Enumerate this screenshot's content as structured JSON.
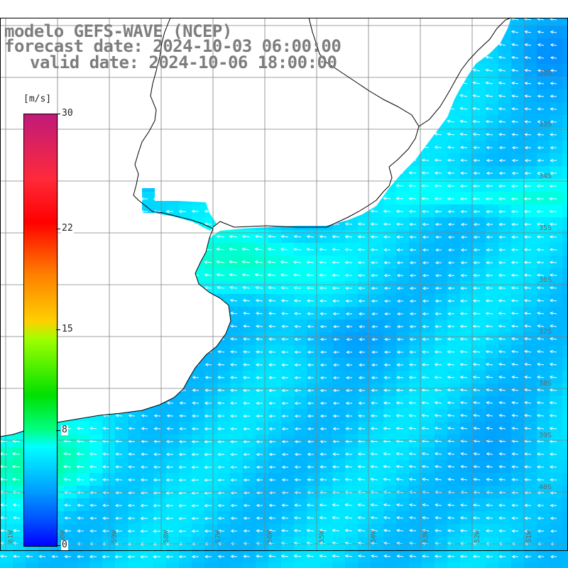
{
  "title": {
    "line1": "modelo GEFS-WAVE (NCEP)",
    "line2": "forecast date: 2024-10-03 06:00:00",
    "line3": "valid date: 2024-10-06 18:00:00"
  },
  "colorbar": {
    "unit": "[m/s]",
    "labels": [
      "30",
      "22",
      "15",
      "8",
      "0"
    ],
    "ticks": [
      30,
      22,
      15,
      8,
      0
    ],
    "min": 0,
    "max": 30
  },
  "lat_labels": [
    "32S",
    "33S",
    "34S",
    "35S",
    "36S",
    "37S",
    "38S",
    "39S",
    "40S"
  ],
  "lon_labels": [
    "61W",
    "60W",
    "59W",
    "58W",
    "57W",
    "56W",
    "55W",
    "54W",
    "53W",
    "52W",
    "51W"
  ],
  "colors": {
    "land": "#ffffff",
    "grid": "#808080",
    "coast": "#000000",
    "arrow": "#ffffff"
  }
}
